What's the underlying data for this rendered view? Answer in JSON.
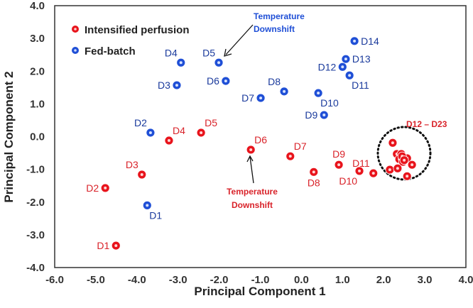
{
  "chart_data": {
    "type": "scatter",
    "title": "",
    "xlabel": "Principal Component 1",
    "ylabel": "Principal Component 2",
    "xlim": [
      -6,
      4
    ],
    "ylim": [
      -4,
      4
    ],
    "xticks": [
      "-6.0",
      "-5.0",
      "-4.0",
      "-3.0",
      "-2.0",
      "-1.0",
      "0.0",
      "1.0",
      "2.0",
      "3.0",
      "4.0"
    ],
    "yticks": [
      "-4.0",
      "-3.0",
      "-2.0",
      "-1.0",
      "0.0",
      "1.0",
      "2.0",
      "3.0",
      "4.0"
    ],
    "grid": false,
    "legend_position": "top-left",
    "series": [
      {
        "name": "Intensified perfusion",
        "color": "#e8141c",
        "label_color": "#d9232a",
        "points": [
          {
            "label": "D1",
            "x": -4.51,
            "y": -3.33,
            "label_pos": "left"
          },
          {
            "label": "D2",
            "x": -4.77,
            "y": -1.57,
            "label_pos": "left"
          },
          {
            "label": "D3",
            "x": -3.88,
            "y": -1.16,
            "label_pos": "above-left"
          },
          {
            "label": "D4",
            "x": -3.22,
            "y": -0.12,
            "label_pos": "above-right"
          },
          {
            "label": "D5",
            "x": -2.44,
            "y": 0.12,
            "label_pos": "above-right"
          },
          {
            "label": "D6",
            "x": -1.23,
            "y": -0.4,
            "label_pos": "above-right"
          },
          {
            "label": "D7",
            "x": -0.27,
            "y": -0.6,
            "label_pos": "above-right"
          },
          {
            "label": "D8",
            "x": 0.3,
            "y": -1.08,
            "label_pos": "below"
          },
          {
            "label": "D9",
            "x": 0.91,
            "y": -0.86,
            "label_pos": "above"
          },
          {
            "label": "D10",
            "x": 1.41,
            "y": -1.05,
            "label_pos": "below-left"
          },
          {
            "label": "D11",
            "x": 1.75,
            "y": -1.12,
            "label_pos": "above-left"
          },
          {
            "label": "",
            "x": 2.22,
            "y": -0.19
          },
          {
            "label": "",
            "x": 2.32,
            "y": -0.53
          },
          {
            "label": "",
            "x": 2.43,
            "y": -0.53
          },
          {
            "label": "",
            "x": 2.38,
            "y": -0.69
          },
          {
            "label": "",
            "x": 2.57,
            "y": -0.66
          },
          {
            "label": "",
            "x": 2.47,
            "y": -0.77
          },
          {
            "label": "",
            "x": 2.69,
            "y": -0.86
          },
          {
            "label": "",
            "x": 2.15,
            "y": -1.01
          },
          {
            "label": "",
            "x": 2.34,
            "y": -0.97
          },
          {
            "label": "",
            "x": 2.57,
            "y": -1.21
          },
          {
            "label": "",
            "x": 2.45,
            "y": -0.6
          },
          {
            "label": "",
            "x": 2.5,
            "y": -0.72
          }
        ]
      },
      {
        "name": "Fed-batch",
        "color": "#1f4fd6",
        "label_color": "#1a3a9c",
        "points": [
          {
            "label": "D1",
            "x": -3.75,
            "y": -2.1,
            "label_pos": "below-right"
          },
          {
            "label": "D2",
            "x": -3.67,
            "y": 0.12,
            "label_pos": "above-left"
          },
          {
            "label": "D3",
            "x": -3.03,
            "y": 1.57,
            "label_pos": "left"
          },
          {
            "label": "D4",
            "x": -2.93,
            "y": 2.26,
            "label_pos": "above-left"
          },
          {
            "label": "D5",
            "x": -2.01,
            "y": 2.26,
            "label_pos": "above-left"
          },
          {
            "label": "D6",
            "x": -1.84,
            "y": 1.7,
            "label_pos": "left"
          },
          {
            "label": "D7",
            "x": -0.99,
            "y": 1.18,
            "label_pos": "left"
          },
          {
            "label": "D8",
            "x": -0.42,
            "y": 1.38,
            "label_pos": "above-left"
          },
          {
            "label": "D9",
            "x": 0.55,
            "y": 0.66,
            "label_pos": "left"
          },
          {
            "label": "D10",
            "x": 0.41,
            "y": 1.33,
            "label_pos": "below-right"
          },
          {
            "label": "D11",
            "x": 1.17,
            "y": 1.87,
            "label_pos": "below-right"
          },
          {
            "label": "D12",
            "x": 1.0,
            "y": 2.13,
            "label_pos": "left"
          },
          {
            "label": "D13",
            "x": 1.08,
            "y": 2.37,
            "label_pos": "right"
          },
          {
            "label": "D14",
            "x": 1.29,
            "y": 2.92,
            "label_pos": "right"
          }
        ]
      }
    ],
    "annotations": {
      "cluster_label": "D12 – D23",
      "fedbatch_downshift": [
        "Temperature",
        "Downshift"
      ],
      "perfusion_downshift": [
        "Temperature",
        "Downshift"
      ]
    }
  }
}
